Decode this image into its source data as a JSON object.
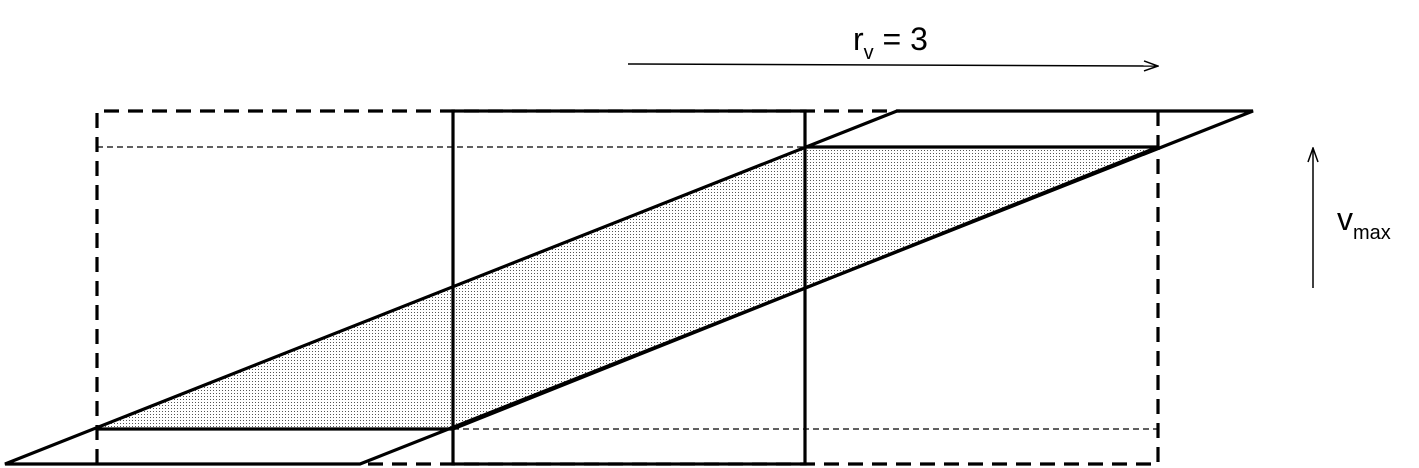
{
  "diagram": {
    "ratio_label": {
      "main": "r",
      "subscript": "v",
      "suffix": " = 3"
    },
    "velocity_label": {
      "main": "v",
      "subscript": "max"
    },
    "colors": {
      "stroke": "#000000",
      "shading": "#555555",
      "background": "#ffffff"
    }
  }
}
